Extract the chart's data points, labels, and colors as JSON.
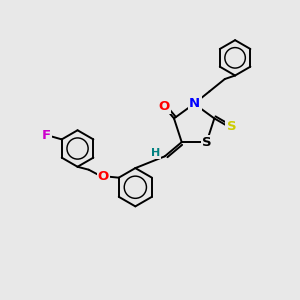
{
  "bg_color": "#e8e8e8",
  "bond_color": "#000000",
  "atom_colors": {
    "O": "#ff0000",
    "N": "#0000ff",
    "S_thioxo": "#cccc00",
    "S_ring": "#000000",
    "F": "#cc00cc",
    "H": "#008080",
    "C": "#000000"
  },
  "lw": 1.4,
  "fs": 8.5,
  "figsize": [
    3.0,
    3.0
  ],
  "dpi": 100
}
